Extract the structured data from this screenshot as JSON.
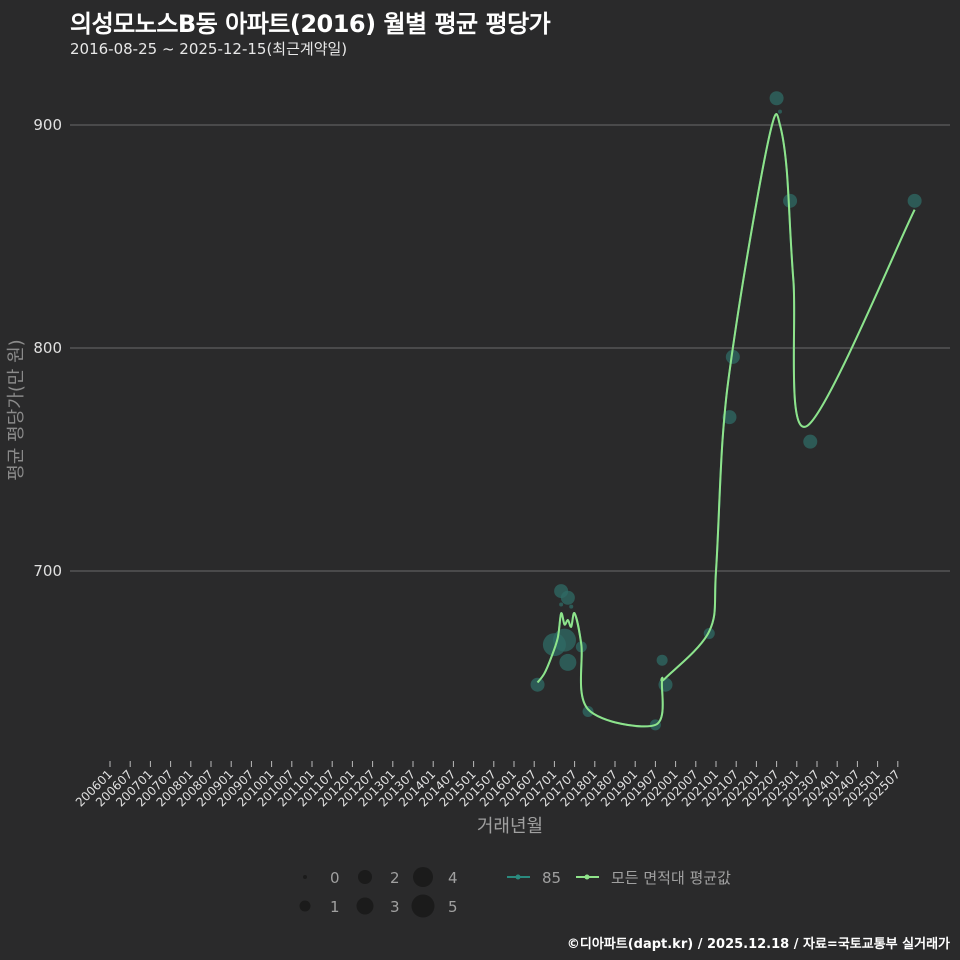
{
  "header": {
    "title": "의성모노스B동 아파트(2016) 월별 평균 평당가",
    "subtitle": "2016-08-25 ~ 2025-12-15(최근계약일)"
  },
  "footer": {
    "credit": "©디아파트(dapt.kr) / 2025.12.18 / 자료=국토교통부 실거래가"
  },
  "colors": {
    "background": "#2a2a2b",
    "grid": "#6b6b6b",
    "series_85": "#2a8a7e",
    "series_avg": "#8fe38a",
    "bubble": "#2f6b66"
  },
  "chart_data": {
    "type": "line",
    "title": "의성모노스B동 아파트(2016) 월별 평균 평당가",
    "subtitle": "2016-08-25 ~ 2025-12-15(최근계약일)",
    "xlabel": "거래년월",
    "ylabel": "평균 평당가(만 원)",
    "ylim": [
      620,
      920
    ],
    "yticks": [
      700,
      800,
      900
    ],
    "grid": true,
    "x_ticks": [
      "200601",
      "200607",
      "200701",
      "200707",
      "200801",
      "200807",
      "200901",
      "200907",
      "201001",
      "201007",
      "201101",
      "201107",
      "201201",
      "201207",
      "201301",
      "201307",
      "201401",
      "201407",
      "201501",
      "201507",
      "201601",
      "201607",
      "201701",
      "201707",
      "201801",
      "201807",
      "201901",
      "201907",
      "202001",
      "202007",
      "202101",
      "202107",
      "202201",
      "202207",
      "202301",
      "202307",
      "202401",
      "202407",
      "202501",
      "202507"
    ],
    "legend": {
      "size": {
        "title": "",
        "values": [
          0,
          1,
          2,
          3,
          4,
          5
        ]
      },
      "series": [
        "85",
        "모든 면적대 평균값"
      ],
      "position": "bottom"
    },
    "series": [
      {
        "name": "85",
        "type": "scatter-bubble",
        "points": [
          {
            "x": "201608",
            "y": 649,
            "size": 2
          },
          {
            "x": "201701",
            "y": 667,
            "size": 5
          },
          {
            "x": "201703",
            "y": 691,
            "size": 2
          },
          {
            "x": "201703",
            "y": 685,
            "size": 0
          },
          {
            "x": "201704",
            "y": 669,
            "size": 5
          },
          {
            "x": "201705",
            "y": 659,
            "size": 3
          },
          {
            "x": "201705",
            "y": 688,
            "size": 2
          },
          {
            "x": "201706",
            "y": 684,
            "size": 0
          },
          {
            "x": "201709",
            "y": 666,
            "size": 1
          },
          {
            "x": "201711",
            "y": 637,
            "size": 1
          },
          {
            "x": "201907",
            "y": 631,
            "size": 1
          },
          {
            "x": "201909",
            "y": 660,
            "size": 1
          },
          {
            "x": "201910",
            "y": 649,
            "size": 2
          },
          {
            "x": "202011",
            "y": 672,
            "size": 1
          },
          {
            "x": "202105",
            "y": 769,
            "size": 2
          },
          {
            "x": "202106",
            "y": 796,
            "size": 2
          },
          {
            "x": "202207",
            "y": 912,
            "size": 2
          },
          {
            "x": "202208",
            "y": 906,
            "size": 0
          },
          {
            "x": "202211",
            "y": 866,
            "size": 2
          },
          {
            "x": "202305",
            "y": 758,
            "size": 2
          },
          {
            "x": "202512",
            "y": 866,
            "size": 2
          }
        ]
      },
      {
        "name": "모든 면적대 평균값",
        "type": "line",
        "points": [
          {
            "x": "201608",
            "y": 650
          },
          {
            "x": "201610",
            "y": 654
          },
          {
            "x": "201612",
            "y": 661
          },
          {
            "x": "201702",
            "y": 670
          },
          {
            "x": "201703",
            "y": 681
          },
          {
            "x": "201704",
            "y": 676
          },
          {
            "x": "201705",
            "y": 678
          },
          {
            "x": "201706",
            "y": 675
          },
          {
            "x": "201707",
            "y": 681
          },
          {
            "x": "201709",
            "y": 667
          },
          {
            "x": "201711",
            "y": 638
          },
          {
            "x": "201907",
            "y": 631
          },
          {
            "x": "201909",
            "y": 651
          },
          {
            "x": "201910",
            "y": 652
          },
          {
            "x": "202011",
            "y": 673
          },
          {
            "x": "202101",
            "y": 700
          },
          {
            "x": "202103",
            "y": 760
          },
          {
            "x": "202106",
            "y": 800
          },
          {
            "x": "202201",
            "y": 865
          },
          {
            "x": "202206",
            "y": 902
          },
          {
            "x": "202208",
            "y": 900
          },
          {
            "x": "202210",
            "y": 880
          },
          {
            "x": "202212",
            "y": 830
          },
          {
            "x": "202304",
            "y": 765
          },
          {
            "x": "202512",
            "y": 862
          }
        ]
      }
    ]
  }
}
